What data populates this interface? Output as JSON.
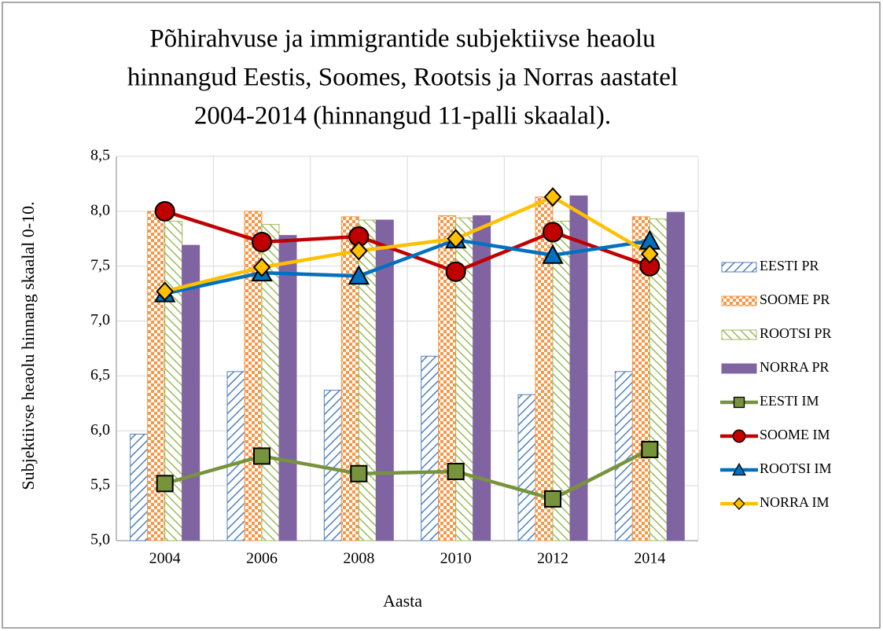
{
  "chart_data": {
    "type": "bar-line",
    "title": [
      "Põhirahvuse ja immigrantide subjektiivse heaolu",
      "hinnangud Eestis, Soomes, Rootsis ja Norras aastatel",
      "2004-2014 (hinnangud 11-palli skaalal)."
    ],
    "x_label": "Aasta",
    "y_label": "Subjektiivse heaolu hinnang skaalal 0-10.",
    "categories": [
      "2004",
      "2006",
      "2008",
      "2010",
      "2012",
      "2014"
    ],
    "ylim": [
      5,
      8.5
    ],
    "yticks": [
      {
        "value": 5,
        "label": "5,0"
      },
      {
        "value": 5.5,
        "label": "5,5"
      },
      {
        "value": 6,
        "label": "6,0"
      },
      {
        "value": 6.5,
        "label": "6,5"
      },
      {
        "value": 7,
        "label": "7,0"
      },
      {
        "value": 7.5,
        "label": "7,5"
      },
      {
        "value": 8,
        "label": "8,0"
      },
      {
        "value": 8.5,
        "label": "8,5"
      }
    ],
    "legend": "right",
    "series": [
      {
        "name": "EESTI PR",
        "kind": "bar",
        "pattern": "hatch-down",
        "color": "#4f81bd",
        "values": [
          5.97,
          6.54,
          6.37,
          6.68,
          6.33,
          6.54
        ]
      },
      {
        "name": "SOOME PR",
        "kind": "bar",
        "pattern": "checker",
        "color": "#f79646",
        "values": [
          8.0,
          8.0,
          7.95,
          7.96,
          8.13,
          7.95
        ]
      },
      {
        "name": "ROOTSI PR",
        "kind": "bar",
        "pattern": "hatch-up",
        "color": "#9bbb59",
        "values": [
          7.91,
          7.88,
          7.92,
          7.94,
          7.91,
          7.93
        ]
      },
      {
        "name": "NORRA PR",
        "kind": "bar",
        "pattern": "solid",
        "color": "#8064a2",
        "values": [
          7.69,
          7.78,
          7.92,
          7.96,
          8.14,
          7.99
        ]
      },
      {
        "name": "EESTI IM",
        "kind": "line",
        "marker": "square",
        "color": "#77933c",
        "values": [
          5.52,
          5.77,
          5.61,
          5.63,
          5.38,
          5.83
        ]
      },
      {
        "name": "SOOME IM",
        "kind": "line",
        "marker": "circle",
        "color": "#c00000",
        "values": [
          8.0,
          7.72,
          7.77,
          7.45,
          7.81,
          7.5
        ]
      },
      {
        "name": "ROOTSI IM",
        "kind": "line",
        "marker": "triangle",
        "color": "#0070c0",
        "values": [
          7.25,
          7.44,
          7.41,
          7.74,
          7.6,
          7.73
        ]
      },
      {
        "name": "NORRA IM",
        "kind": "line",
        "marker": "diamond",
        "color": "#ffc000",
        "values": [
          7.27,
          7.49,
          7.64,
          7.75,
          8.13,
          7.61
        ]
      }
    ]
  }
}
